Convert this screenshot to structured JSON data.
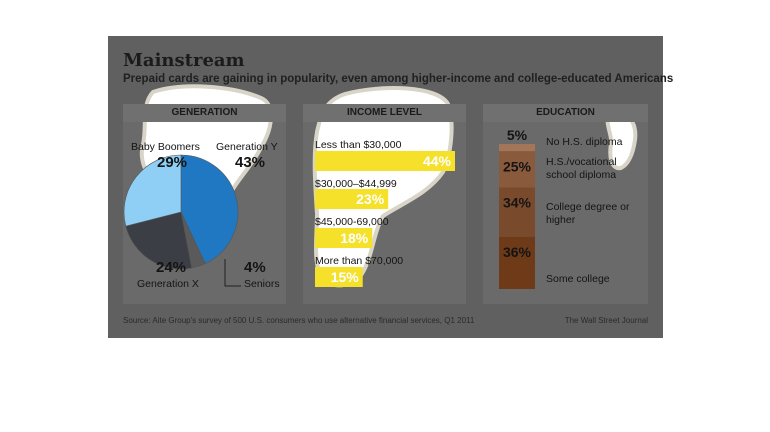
{
  "title": "Mainstream",
  "subtitle": "Prepaid cards are gaining in popularity, even among higher-income and college-educated Americans",
  "source": "Source: Aite Group's survey of 500 U.S. consumers who use alternative financial services, Q1 2011",
  "credit": "The Wall Street Journal",
  "chart_data": [
    {
      "type": "pie",
      "title": "GENERATION",
      "slices": [
        {
          "label": "Generation Y",
          "value": 43,
          "display": "43%",
          "color": "#1f78c1"
        },
        {
          "label": "Seniors",
          "value": 4,
          "display": "4%",
          "color": "#5a5a5a"
        },
        {
          "label": "Generation X",
          "value": 24,
          "display": "24%",
          "color": "#3b3e45"
        },
        {
          "label": "Baby Boomers",
          "value": 29,
          "display": "29%",
          "color": "#8fcff6"
        }
      ]
    },
    {
      "type": "bar",
      "title": "INCOME LEVEL",
      "categories": [
        "Less than $30,000",
        "$30,000–$44,999",
        "$45,000-69,000",
        "More than $70,000"
      ],
      "values": [
        44,
        23,
        18,
        15
      ],
      "labels": [
        "44%",
        "23%",
        "18%",
        "15%"
      ],
      "color": "#f5e12a"
    },
    {
      "type": "bar",
      "title": "EDUCATION",
      "categories": [
        "No H.S. diploma",
        "H.S./vocational school diploma",
        "College degree or higher",
        "Some college"
      ],
      "values": [
        5,
        25,
        34,
        36
      ],
      "labels": [
        "5%",
        "25%",
        "34%",
        "36%"
      ],
      "colors": [
        "#a3765a",
        "#8a5a3c",
        "#7a4a2c",
        "#6e3a17"
      ]
    }
  ]
}
